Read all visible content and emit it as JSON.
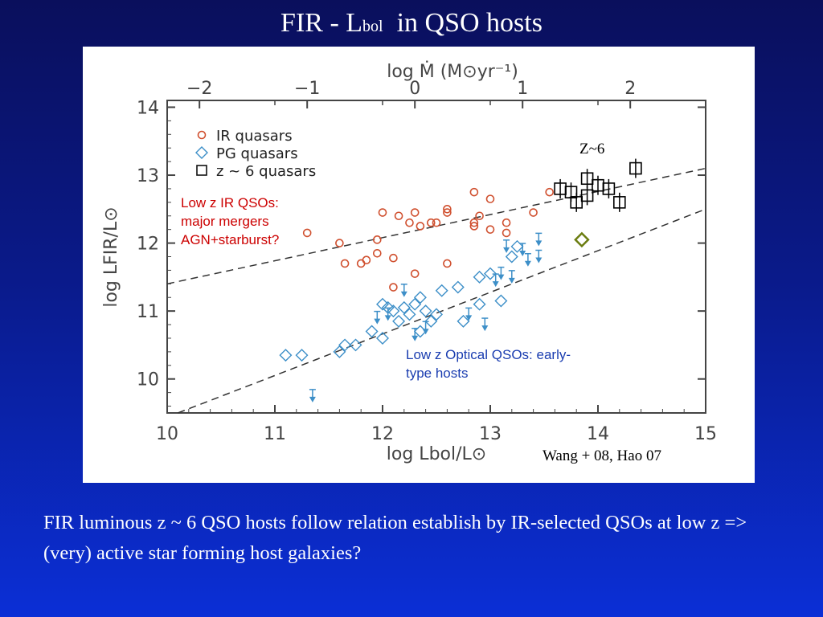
{
  "slide": {
    "title_main": "FIR - L",
    "title_sub": "bol",
    "title_rest": "in QSO hosts",
    "caption": "FIR luminous z ~ 6 QSO hosts follow relation establish by IR-selected QSOs at low z => (very) active star forming host galaxies?"
  },
  "colors": {
    "ir": "#d0502f",
    "pg": "#3d8fc8",
    "z6": "#000000",
    "highlight": "#6b7d10",
    "annot_red": "#cc0000",
    "annot_blue": "#1a3db0"
  },
  "chart_data": {
    "type": "scatter",
    "xlim": [
      10,
      15
    ],
    "ylim": [
      9.5,
      14.1
    ],
    "x_ticks": [
      10,
      11,
      12,
      13,
      14,
      15
    ],
    "y_ticks": [
      10,
      11,
      12,
      13,
      14
    ],
    "top_axis": {
      "label": "log Ṁ (M⊙yr⁻¹)",
      "ticks": [
        -2,
        -1,
        0,
        1,
        2
      ]
    },
    "xlabel": "log Lbol/L⊙",
    "ylabel": "log LFIR/L⊙",
    "legend": {
      "placement": "top-left",
      "entries": [
        "IR quasars",
        "PG quasars",
        "z ~ 6 quasars"
      ]
    },
    "series": [
      {
        "name": "IR quasars",
        "marker": "circle",
        "points": [
          [
            11.3,
            12.15
          ],
          [
            11.6,
            12.0
          ],
          [
            11.65,
            11.7
          ],
          [
            11.8,
            11.7
          ],
          [
            11.85,
            11.75
          ],
          [
            11.95,
            12.05
          ],
          [
            11.95,
            11.85
          ],
          [
            12.1,
            11.78
          ],
          [
            12.0,
            12.45
          ],
          [
            12.15,
            12.4
          ],
          [
            12.25,
            12.3
          ],
          [
            12.3,
            12.45
          ],
          [
            12.35,
            12.25
          ],
          [
            12.5,
            12.3
          ],
          [
            12.6,
            12.45
          ],
          [
            12.6,
            12.5
          ],
          [
            12.85,
            12.25
          ],
          [
            12.85,
            12.3
          ],
          [
            12.9,
            12.4
          ],
          [
            13.0,
            12.65
          ],
          [
            12.85,
            12.75
          ],
          [
            13.15,
            12.15
          ],
          [
            13.15,
            12.3
          ],
          [
            13.4,
            12.45
          ],
          [
            13.55,
            12.75
          ],
          [
            12.1,
            11.35
          ],
          [
            12.3,
            11.55
          ],
          [
            12.6,
            11.7
          ],
          [
            13.0,
            12.2
          ],
          [
            12.45,
            12.3
          ]
        ]
      },
      {
        "name": "PG quasars",
        "marker": "diamond",
        "points": [
          [
            11.1,
            10.35
          ],
          [
            11.25,
            10.35
          ],
          [
            11.6,
            10.4
          ],
          [
            11.65,
            10.5
          ],
          [
            11.75,
            10.5
          ],
          [
            11.9,
            10.7
          ],
          [
            12.0,
            10.6
          ],
          [
            12.0,
            11.1
          ],
          [
            12.1,
            11.0
          ],
          [
            12.2,
            11.05
          ],
          [
            12.25,
            10.95
          ],
          [
            12.3,
            11.1
          ],
          [
            12.35,
            11.2
          ],
          [
            12.4,
            11.0
          ],
          [
            12.45,
            10.85
          ],
          [
            12.5,
            10.95
          ],
          [
            12.35,
            10.7
          ],
          [
            12.55,
            11.3
          ],
          [
            12.7,
            11.35
          ],
          [
            12.9,
            11.5
          ],
          [
            12.9,
            11.1
          ],
          [
            13.0,
            11.55
          ],
          [
            13.1,
            11.15
          ],
          [
            13.2,
            11.8
          ],
          [
            13.25,
            11.95
          ],
          [
            12.05,
            11.05
          ],
          [
            12.15,
            10.85
          ],
          [
            12.75,
            10.85
          ]
        ]
      },
      {
        "name": "z ~ 6 quasars",
        "marker": "square",
        "points": [
          [
            13.65,
            12.8
          ],
          [
            13.75,
            12.75
          ],
          [
            13.8,
            12.6
          ],
          [
            13.9,
            12.7
          ],
          [
            14.0,
            12.85
          ],
          [
            14.1,
            12.8
          ],
          [
            14.2,
            12.6
          ],
          [
            13.9,
            12.95
          ],
          [
            14.35,
            13.1
          ]
        ]
      },
      {
        "name": "",
        "marker": "diamond-highlight",
        "points": [
          [
            13.85,
            12.05
          ]
        ]
      }
    ],
    "upper_limits": [
      [
        11.35,
        9.75
      ],
      [
        11.95,
        10.9
      ],
      [
        12.05,
        10.95
      ],
      [
        12.2,
        11.3
      ],
      [
        12.3,
        10.65
      ],
      [
        12.4,
        10.75
      ],
      [
        12.8,
        10.95
      ],
      [
        12.95,
        10.8
      ],
      [
        13.05,
        11.45
      ],
      [
        13.1,
        11.55
      ],
      [
        13.2,
        11.5
      ],
      [
        13.15,
        11.95
      ],
      [
        13.3,
        11.9
      ],
      [
        13.45,
        11.8
      ],
      [
        13.35,
        11.75
      ],
      [
        13.45,
        12.05
      ]
    ],
    "trend_lines": [
      {
        "from": [
          10.0,
          11.4
        ],
        "to": [
          15.0,
          13.1
        ]
      },
      {
        "from": [
          10.1,
          9.5
        ],
        "to": [
          15.0,
          12.5
        ]
      }
    ],
    "annotations": {
      "z6_label": "Z~6",
      "ir_group": [
        "Low z IR QSOs:",
        "major mergers",
        "AGN+starburst?"
      ],
      "optical_group": [
        "Low z Optical QSOs: early-",
        "type hosts"
      ],
      "reference": "Wang + 08, Hao 07"
    }
  }
}
